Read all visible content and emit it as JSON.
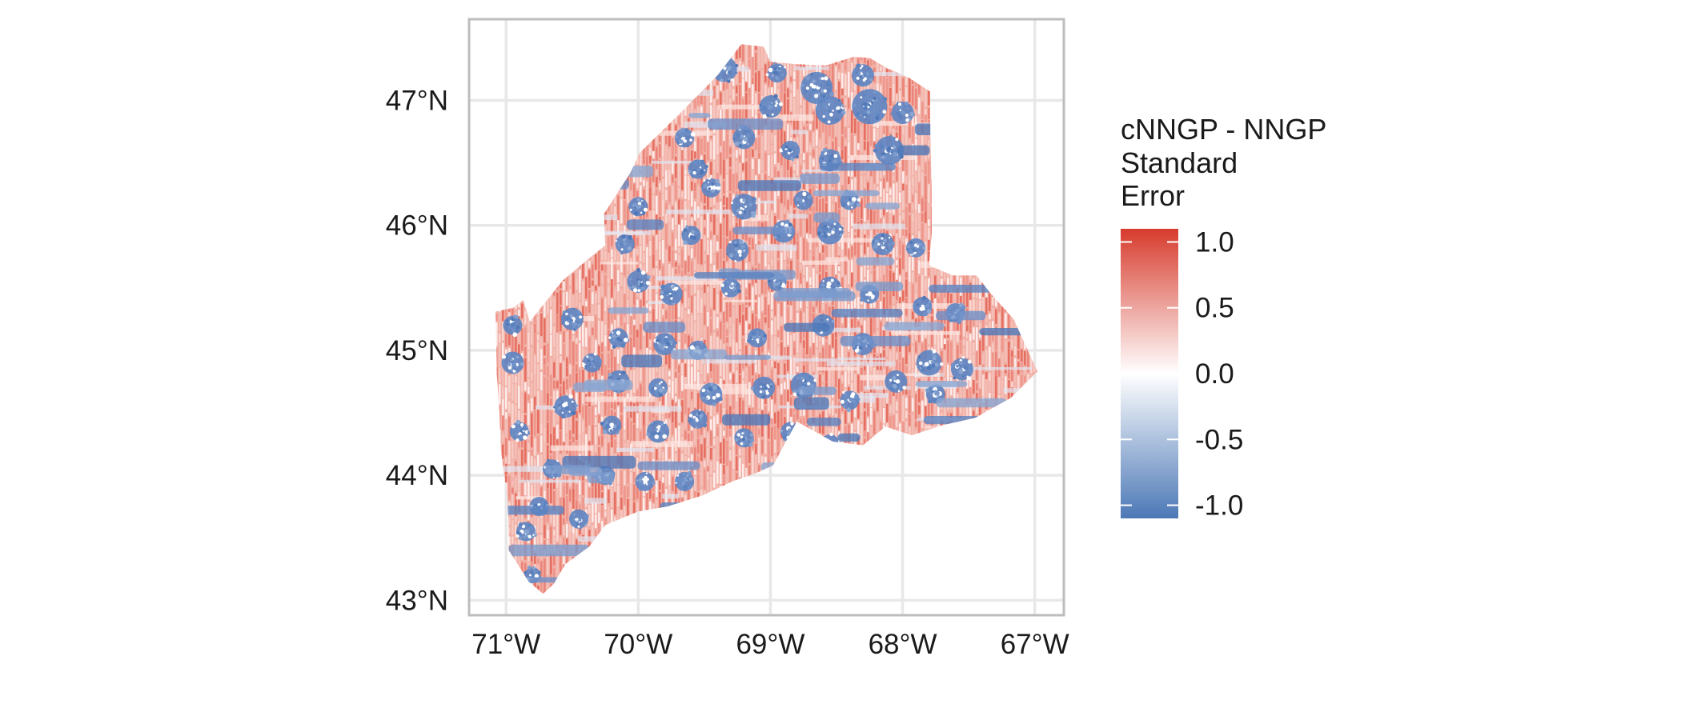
{
  "map": {
    "type": "raster-map",
    "region": "Maine",
    "projection": "longitude-latitude",
    "x_ticks": [
      {
        "value": -71,
        "label": "71°W"
      },
      {
        "value": -70,
        "label": "70°W"
      },
      {
        "value": -69,
        "label": "69°W"
      },
      {
        "value": -68,
        "label": "68°W"
      },
      {
        "value": -67,
        "label": "67°W"
      }
    ],
    "y_ticks": [
      {
        "value": 43,
        "label": "43°N"
      },
      {
        "value": 44,
        "label": "44°N"
      },
      {
        "value": 45,
        "label": "45°N"
      },
      {
        "value": 46,
        "label": "46°N"
      },
      {
        "value": 47,
        "label": "47°N"
      }
    ],
    "xlim": [
      -71.28,
      -66.78
    ],
    "ylim": [
      42.88,
      47.65
    ],
    "grid": true,
    "panel_border_color": "#bdbdbd",
    "grid_color": "#e8e8e8",
    "field": {
      "description_source": "cNNGP - NNGP Standard Error",
      "value_range": [
        -1.15,
        1.15
      ],
      "dominant_positive_level": 0.35,
      "blue_patch_level": -0.95
    }
  },
  "legend": {
    "title_lines": [
      "cNNGP - NNGP",
      "Standard",
      "Error"
    ],
    "ticks": [
      {
        "value": 1.0,
        "label": "1.0"
      },
      {
        "value": 0.5,
        "label": "0.5"
      },
      {
        "value": 0.0,
        "label": "0.0"
      },
      {
        "value": -0.5,
        "label": "-0.5"
      },
      {
        "value": -1.0,
        "label": "-1.0"
      }
    ],
    "range": [
      -1.1,
      1.1
    ],
    "colors": {
      "high": "#d73b2d",
      "mid": "#ffffff",
      "low": "#4c78b6"
    },
    "placement": "right"
  },
  "chart_data": {
    "type": "heatmap",
    "title": "",
    "xlabel": "",
    "ylabel": "",
    "x_tick_labels": [
      "71°W",
      "70°W",
      "69°W",
      "68°W",
      "67°W"
    ],
    "y_tick_labels": [
      "43°N",
      "44°N",
      "45°N",
      "46°N",
      "47°N"
    ],
    "legend_title": "cNNGP - NNGP Standard Error",
    "legend_ticks": [
      1.0,
      0.5,
      0.0,
      -0.5,
      -1.0
    ],
    "color_scale": [
      "#4c78b6",
      "#ffffff",
      "#d73b2d"
    ]
  }
}
